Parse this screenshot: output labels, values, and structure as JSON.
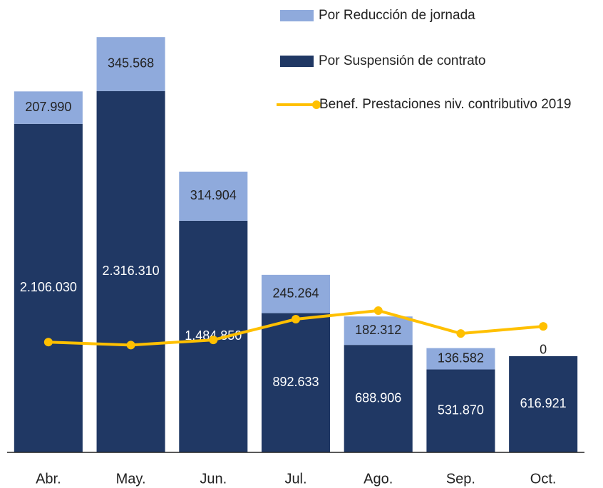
{
  "chart_data": {
    "type": "bar",
    "stacked": true,
    "categories": [
      "Abr.",
      "May.",
      "Jun.",
      "Jul.",
      "Ago.",
      "Sep.",
      "Oct."
    ],
    "series": [
      {
        "name": "Por Suspensión de contrato",
        "color": "#203864",
        "values": [
          2106030,
          2316310,
          1484850,
          892633,
          688906,
          531870,
          616921
        ],
        "value_labels": [
          "2.106.030",
          "2.316.310",
          "1.484.850",
          "892.633",
          "688.906",
          "531.870",
          "616.921"
        ]
      },
      {
        "name": "Por Reducción de jornada",
        "color": "#8faadc",
        "values": [
          207990,
          345568,
          314904,
          245264,
          182312,
          136582,
          0
        ],
        "value_labels": [
          "207.990",
          "345.568",
          "314.904",
          "245.264",
          "182.312",
          "136.582",
          "0"
        ]
      },
      {
        "name": "Benef. Prestaciones niv. contributivo 2019",
        "color": "#ffc000",
        "type": "line",
        "values": [
          707000,
          688000,
          721000,
          854000,
          909000,
          762000,
          808000
        ]
      }
    ],
    "ylim": [
      0,
      2900000
    ]
  }
}
